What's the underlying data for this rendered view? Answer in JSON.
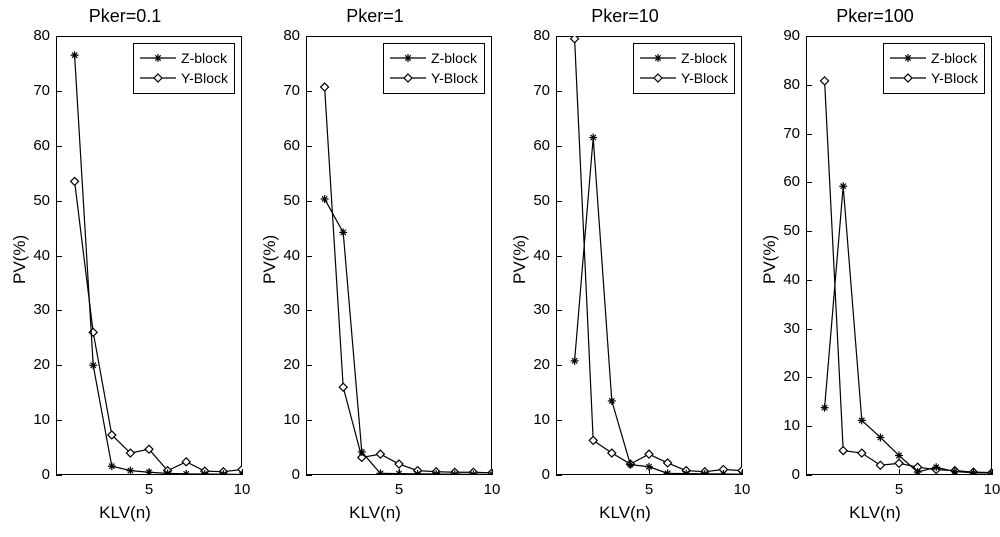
{
  "global": {
    "figure_w": 1000,
    "figure_h": 537,
    "background": "#ffffff",
    "line_color": "#000000",
    "tick_color": "#000000",
    "text_color": "#000000",
    "font_family": "Helvetica, Arial, sans-serif",
    "title_fontsize": 18,
    "label_fontsize": 17,
    "tick_fontsize": 15,
    "legend_fontsize": 14,
    "line_width": 1.2,
    "marker_size": 8,
    "series_styles": {
      "z": {
        "label": "Z-block",
        "marker": "asterisk",
        "color": "#000000"
      },
      "y": {
        "label": "Y-Block",
        "marker": "diamond",
        "color": "#000000"
      }
    }
  },
  "panels": [
    {
      "title": "Pker=0.1",
      "xlabel": "KLV(n)",
      "ylabel": "PV(%)",
      "xlim": [
        0,
        10
      ],
      "ylim": [
        0,
        80
      ],
      "xticks": [
        5,
        10
      ],
      "yticks": [
        0,
        10,
        20,
        30,
        40,
        50,
        60,
        70,
        80
      ],
      "legend_pos": "top-right",
      "series": {
        "z": [
          [
            1,
            76.5
          ],
          [
            2,
            20.0
          ],
          [
            3,
            1.6
          ],
          [
            4,
            0.8
          ],
          [
            5,
            0.5
          ],
          [
            6,
            0.3
          ],
          [
            7,
            0.2
          ],
          [
            8,
            0.18
          ],
          [
            9,
            0.15
          ],
          [
            10,
            0.1
          ]
        ],
        "y": [
          [
            1,
            53.5
          ],
          [
            2,
            26.0
          ],
          [
            3,
            7.3
          ],
          [
            4,
            4.0
          ],
          [
            5,
            4.7
          ],
          [
            6,
            0.8
          ],
          [
            7,
            2.4
          ],
          [
            8,
            0.7
          ],
          [
            9,
            0.6
          ],
          [
            10,
            1.0
          ]
        ]
      }
    },
    {
      "title": "Pker=1",
      "xlabel": "KLV(n)",
      "ylabel": "PV(%)",
      "xlim": [
        0,
        10
      ],
      "ylim": [
        0,
        80
      ],
      "xticks": [
        5,
        10
      ],
      "yticks": [
        0,
        10,
        20,
        30,
        40,
        50,
        60,
        70,
        80
      ],
      "legend_pos": "top-right",
      "series": {
        "z": [
          [
            1,
            50.3
          ],
          [
            2,
            44.2
          ],
          [
            3,
            4.2
          ],
          [
            4,
            0.3
          ],
          [
            5,
            0.25
          ],
          [
            6,
            0.2
          ],
          [
            7,
            0.18
          ],
          [
            8,
            0.15
          ],
          [
            9,
            0.13
          ],
          [
            10,
            0.1
          ]
        ],
        "y": [
          [
            1,
            70.7
          ],
          [
            2,
            16.0
          ],
          [
            3,
            3.2
          ],
          [
            4,
            3.8
          ],
          [
            5,
            2.0
          ],
          [
            6,
            0.8
          ],
          [
            7,
            0.6
          ],
          [
            8,
            0.5
          ],
          [
            9,
            0.5
          ],
          [
            10,
            0.4
          ]
        ]
      }
    },
    {
      "title": "Pker=10",
      "xlabel": "KLV(n)",
      "ylabel": "PV(%)",
      "xlim": [
        0,
        10
      ],
      "ylim": [
        0,
        80
      ],
      "xticks": [
        5,
        10
      ],
      "yticks": [
        0,
        10,
        20,
        30,
        40,
        50,
        60,
        70,
        80
      ],
      "legend_pos": "top-right",
      "series": {
        "z": [
          [
            1,
            20.8
          ],
          [
            2,
            61.5
          ],
          [
            3,
            13.5
          ],
          [
            4,
            1.9
          ],
          [
            5,
            1.5
          ],
          [
            6,
            0.3
          ],
          [
            7,
            0.25
          ],
          [
            8,
            0.2
          ],
          [
            9,
            0.18
          ],
          [
            10,
            0.15
          ]
        ],
        "y": [
          [
            1,
            79.5
          ],
          [
            2,
            6.3
          ],
          [
            3,
            4.0
          ],
          [
            4,
            2.0
          ],
          [
            5,
            3.8
          ],
          [
            6,
            2.2
          ],
          [
            7,
            0.8
          ],
          [
            8,
            0.6
          ],
          [
            9,
            1.0
          ],
          [
            10,
            0.8
          ]
        ]
      }
    },
    {
      "title": "Pker=100",
      "xlabel": "KLV(n)",
      "ylabel": "PV(%)",
      "xlim": [
        0,
        10
      ],
      "ylim": [
        0,
        90
      ],
      "xticks": [
        5,
        10
      ],
      "yticks": [
        0,
        10,
        20,
        30,
        40,
        50,
        60,
        70,
        80,
        90
      ],
      "legend_pos": "top-right",
      "series": {
        "z": [
          [
            1,
            13.8
          ],
          [
            2,
            59.2
          ],
          [
            3,
            11.2
          ],
          [
            4,
            7.7
          ],
          [
            5,
            4.0
          ],
          [
            6,
            0.6
          ],
          [
            7,
            1.6
          ],
          [
            8,
            0.7
          ],
          [
            9,
            0.45
          ],
          [
            10,
            0.4
          ]
        ],
        "y": [
          [
            1,
            80.8
          ],
          [
            2,
            5.0
          ],
          [
            3,
            4.5
          ],
          [
            4,
            2.0
          ],
          [
            5,
            2.4
          ],
          [
            6,
            1.6
          ],
          [
            7,
            1.1
          ],
          [
            8,
            0.9
          ],
          [
            9,
            0.6
          ],
          [
            10,
            0.5
          ]
        ]
      }
    }
  ]
}
